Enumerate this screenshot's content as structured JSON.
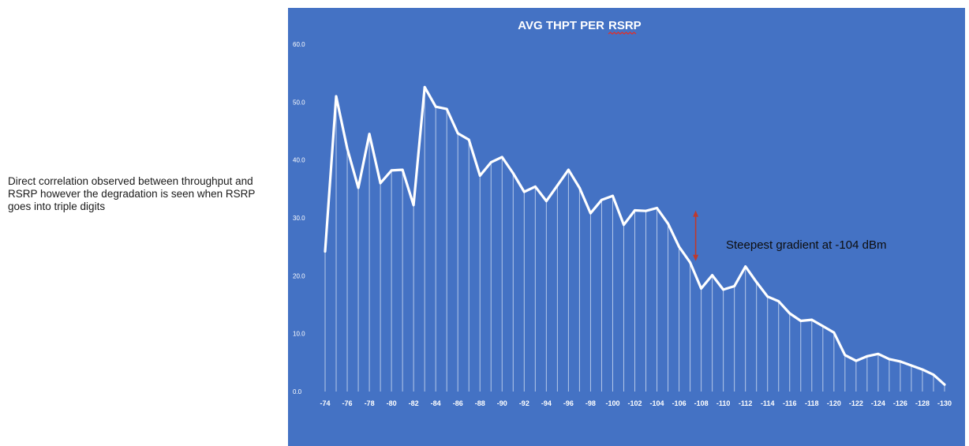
{
  "note": "Direct correlation observed between throughput and RSRP however the degradation is seen when RSRP goes into triple digits",
  "colors": {
    "panel_background": "#4472c4",
    "line": "#ffffff",
    "drop_lines": "#dbe5f6",
    "arrow": "#c0392b",
    "annotation_text": "#0d0d0d",
    "title_underline": "#e0302b"
  },
  "chart_data": {
    "type": "line",
    "title_main": "AVG THPT PER",
    "title_underlined": "RSRP",
    "xlabel": "",
    "ylabel": "",
    "ylim": [
      0,
      60
    ],
    "y_ticks": [
      "0.0",
      "10.0",
      "20.0",
      "30.0",
      "40.0",
      "50.0",
      "60.0"
    ],
    "x_tick_labels": [
      "-74",
      "-76",
      "-78",
      "-80",
      "-82",
      "-84",
      "-86",
      "-88",
      "-90",
      "-92",
      "-94",
      "-96",
      "-98",
      "-100",
      "-102",
      "-104",
      "-106",
      "-108",
      "-110",
      "-112",
      "-114",
      "-116",
      "-118",
      "-120",
      "-122",
      "-124",
      "-126",
      "-128",
      "-130"
    ],
    "drop_lines": true,
    "series": [
      {
        "x": [
          -74,
          -75,
          -76,
          -77,
          -78,
          -79,
          -80,
          -81,
          -82,
          -83,
          -84,
          -85,
          -86,
          -87,
          -88,
          -89,
          -90,
          -91,
          -92,
          -93,
          -94,
          -95,
          -96,
          -97,
          -98,
          -99,
          -100,
          -101,
          -102,
          -103,
          -104,
          -105,
          -106,
          -107,
          -108,
          -109,
          -110,
          -111,
          -112,
          -113,
          -114,
          -115,
          -116,
          -117,
          -118,
          -119,
          -120,
          -121,
          -122,
          -123,
          -124,
          -125,
          -126,
          -127,
          -128,
          -129,
          -130
        ],
        "values": [
          24.2,
          51.0,
          42.0,
          35.2,
          44.5,
          36.0,
          38.2,
          38.3,
          32.2,
          52.6,
          49.2,
          48.8,
          44.6,
          43.5,
          37.3,
          39.6,
          40.5,
          37.7,
          34.5,
          35.4,
          32.9,
          35.6,
          38.3,
          35.2,
          30.8,
          33.1,
          33.8,
          28.8,
          31.3,
          31.2,
          31.7,
          29.0,
          25.0,
          22.3,
          17.8,
          20.1,
          17.6,
          18.2,
          21.6,
          18.9,
          16.4,
          15.6,
          13.5,
          12.2,
          12.4,
          11.3,
          10.2,
          6.3,
          5.3,
          6.1,
          6.5,
          5.6,
          5.2,
          4.5,
          3.8,
          2.9,
          1.2
        ]
      }
    ],
    "annotation": {
      "text": "Steepest gradient at -104 dBm",
      "arrow_x": -107.5,
      "arrow_from": 22.8,
      "arrow_to": 31.0
    }
  }
}
